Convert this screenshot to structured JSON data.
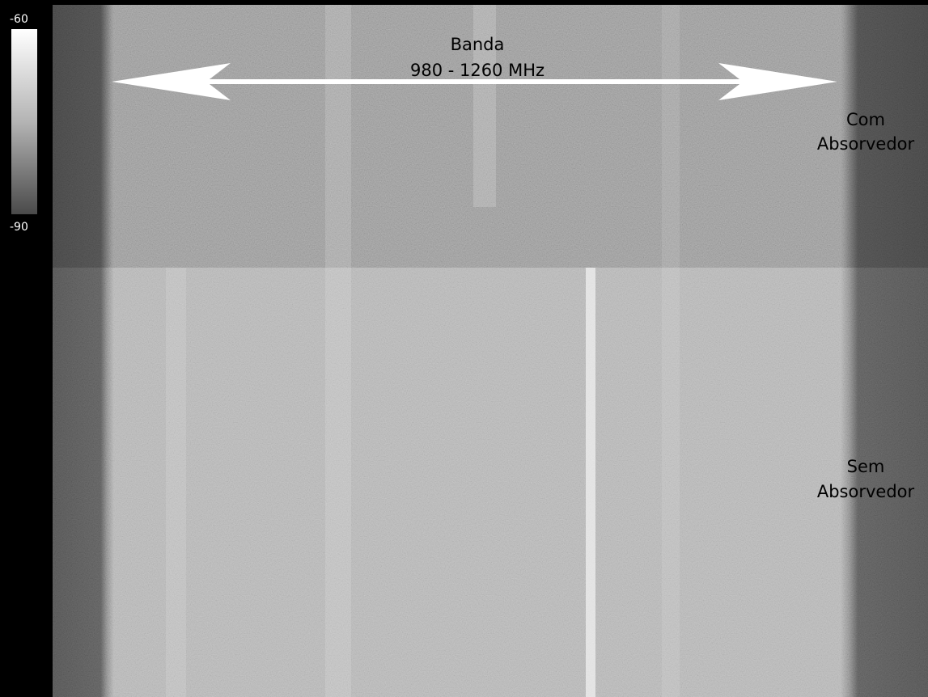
{
  "colorbar": {
    "max_label": "-60",
    "min_label": "-90"
  },
  "annotations": {
    "band": {
      "title": "Banda",
      "range": "980 - 1260 MHz"
    },
    "upper": {
      "lines": [
        "Com",
        "Absorvedor"
      ]
    },
    "lower": {
      "lines": [
        "Sem",
        "Absorvedor"
      ]
    }
  }
}
